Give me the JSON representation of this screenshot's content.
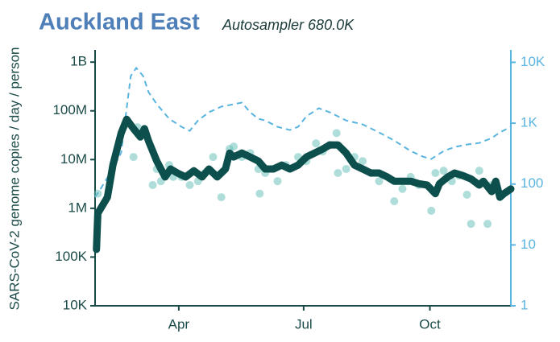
{
  "chart_data": {
    "type": "line",
    "title": "Auckland East",
    "subtitle": "Autosampler 680.0K",
    "ylabel": "SARS-CoV-2 genome copies  / day / person",
    "log_y": true,
    "log_y2": true,
    "xlim": [
      30,
      333
    ],
    "xticks": [
      {
        "value": 91,
        "label": "Apr"
      },
      {
        "value": 182,
        "label": "Jul"
      },
      {
        "value": 274,
        "label": "Oct"
      }
    ],
    "ylim": [
      10000,
      1780000000
    ],
    "yticks": [
      {
        "value": 10000,
        "label": "10K"
      },
      {
        "value": 100000,
        "label": "100K"
      },
      {
        "value": 1000000,
        "label": "1M"
      },
      {
        "value": 10000000,
        "label": "10M"
      },
      {
        "value": 100000000,
        "label": "100M"
      },
      {
        "value": 1000000000,
        "label": "1B"
      }
    ],
    "y2lim": [
      1,
      16000
    ],
    "y2ticks": [
      1,
      10,
      100,
      {
        "value": 1000,
        "label": "1K"
      },
      {
        "value": 10000,
        "label": "10K"
      }
    ],
    "series": [
      {
        "type": "dashed",
        "axis": "y2",
        "color": "#5ab4e0",
        "x": [
          30,
          34,
          43,
          49,
          53,
          56,
          60,
          65,
          69,
          75,
          84,
          93,
          99,
          105,
          113,
          122,
          131,
          137,
          143,
          149,
          154,
          163,
          172,
          178,
          184,
          193,
          201,
          213,
          225,
          237,
          248,
          260,
          269,
          275,
          284,
          292,
          301,
          310,
          319,
          325,
          333
        ],
        "values": [
          61,
          83,
          179,
          329,
          1760,
          5960,
          8080,
          5960,
          3240,
          2050,
          1180,
          871,
          748,
          1110,
          1510,
          1870,
          2050,
          2180,
          1510,
          1180,
          1110,
          871,
          771,
          871,
          1300,
          1760,
          1510,
          1110,
          955,
          705,
          519,
          349,
          282,
          258,
          349,
          406,
          446,
          473,
          569,
          705,
          871
        ]
      },
      {
        "type": "scatter",
        "color": "#5fbdb5",
        "x": [
          32,
          58,
          61,
          66,
          72,
          75,
          78,
          84,
          87,
          93,
          99,
          105,
          110,
          116,
          122,
          128,
          131,
          137,
          143,
          149,
          150,
          154,
          163,
          169,
          178,
          184,
          191,
          196,
          201,
          206,
          207,
          213,
          219,
          225,
          231,
          237,
          248,
          254,
          260,
          266,
          275,
          278,
          284,
          290,
          295,
          301,
          304,
          310,
          316,
          319,
          325
        ],
        "values": [
          2000000,
          11300000,
          46000000,
          35000000,
          3000000,
          6400000,
          3600000,
          7700000,
          4400000,
          4400000,
          3000000,
          3600000,
          5300000,
          11300000,
          1690000,
          16500000,
          18500000,
          11300000,
          13600000,
          6400000,
          2000000,
          5300000,
          3600000,
          7700000,
          11300000,
          9300000,
          21500000,
          14700000,
          20000000,
          35000000,
          5300000,
          6400000,
          11300000,
          9300000,
          5300000,
          3600000,
          1400000,
          2500000,
          4400000,
          3000000,
          890000,
          5300000,
          5900000,
          3600000,
          4700000,
          1900000,
          480000,
          5900000,
          480000,
          3000000,
          2000000
        ]
      },
      {
        "type": "line",
        "color": "#0d4f4c",
        "x": [
          31,
          32,
          39,
          43,
          49,
          53,
          58,
          63,
          66,
          69,
          75,
          81,
          85,
          90,
          96,
          102,
          108,
          113,
          119,
          125,
          128,
          131,
          137,
          143,
          149,
          154,
          160,
          166,
          172,
          178,
          184,
          190,
          196,
          201,
          207,
          213,
          219,
          225,
          231,
          237,
          243,
          248,
          254,
          260,
          266,
          272,
          278,
          281,
          287,
          292,
          298,
          304,
          310,
          313,
          316,
          319,
          322,
          325,
          328,
          333
        ],
        "values": [
          143000,
          790000,
          1690000,
          7700000,
          35000000,
          67000000,
          43000000,
          29000000,
          43000000,
          24000000,
          9300000,
          4400000,
          6400000,
          5300000,
          4400000,
          5900000,
          4400000,
          6400000,
          4400000,
          6400000,
          13600000,
          11300000,
          13600000,
          11300000,
          9300000,
          6400000,
          6400000,
          7700000,
          6400000,
          7700000,
          11300000,
          13600000,
          16500000,
          20000000,
          20000000,
          13600000,
          7700000,
          6400000,
          5300000,
          5300000,
          4400000,
          3600000,
          3600000,
          3600000,
          3200000,
          3000000,
          2000000,
          3200000,
          4400000,
          5300000,
          4700000,
          4000000,
          3000000,
          3600000,
          2800000,
          2200000,
          3600000,
          1690000,
          2000000,
          2500000
        ]
      }
    ]
  }
}
